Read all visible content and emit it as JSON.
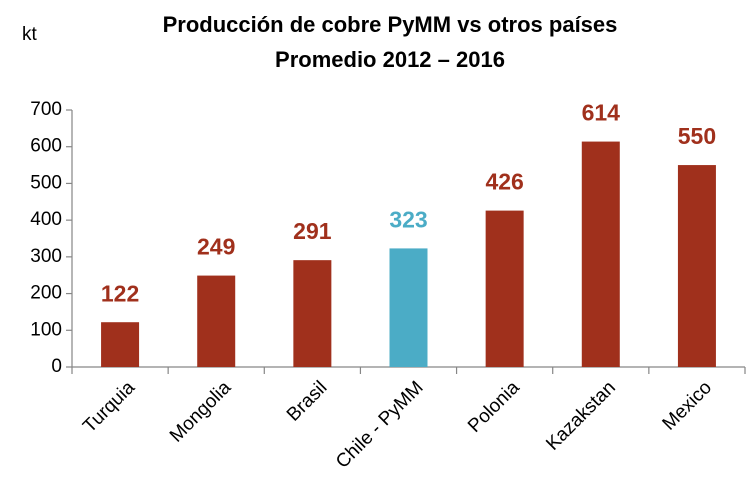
{
  "chart_data": {
    "type": "bar",
    "title": "Producción de cobre PyMM vs otros países",
    "subtitle": "Promedio 2012 – 2016",
    "ylabel": "kt",
    "categories": [
      "Turquia",
      "Mongolia",
      "Brasil",
      "Chile - PyMM",
      "Polonia",
      "Kazakstan",
      "Mexico"
    ],
    "values": [
      122,
      249,
      291,
      323,
      426,
      614,
      550
    ],
    "colors": [
      "#a0301c",
      "#a0301c",
      "#a0301c",
      "#4bacc6",
      "#a0301c",
      "#a0301c",
      "#a0301c"
    ],
    "ylim": [
      0,
      700
    ],
    "yticks": [
      0,
      100,
      200,
      300,
      400,
      500,
      600,
      700
    ],
    "grid": false
  }
}
